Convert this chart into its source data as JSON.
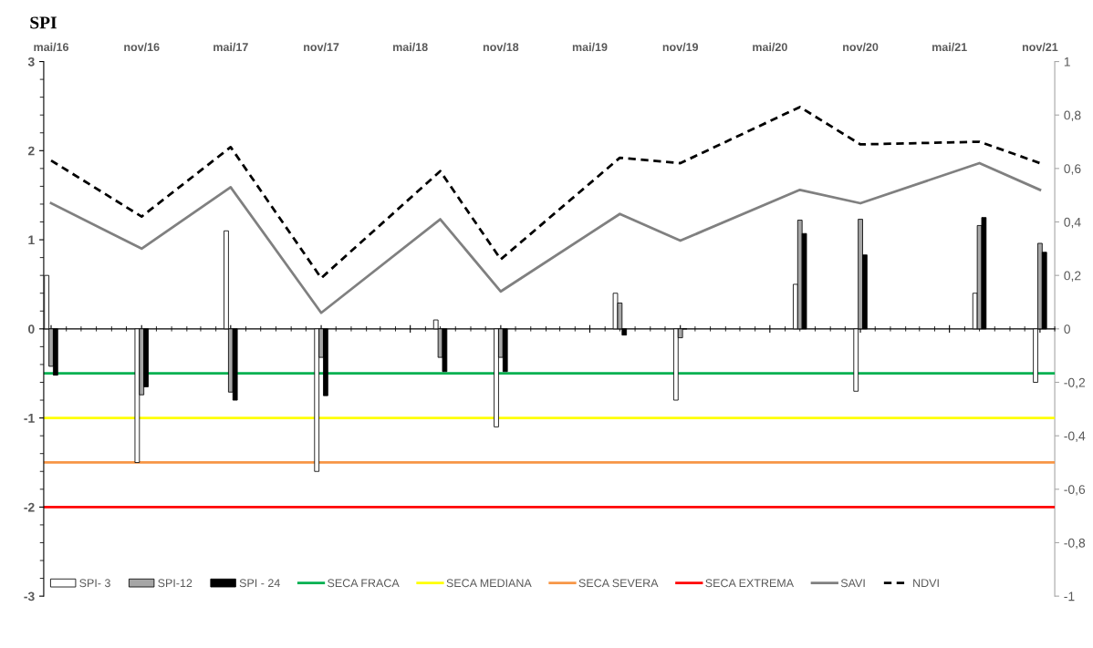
{
  "chart_data": {
    "type": "bar",
    "title": "SPI",
    "x": [
      "2016-05",
      "2016-11",
      "2017-05",
      "2017-11",
      "2018-07",
      "2018-11",
      "2019-07",
      "2019-11",
      "2020-07",
      "2020-11",
      "2021-07",
      "2021-11"
    ],
    "xlim": [
      "2016-04-16",
      "2021-12-01"
    ],
    "xticks": [
      {
        "value": "2016-05",
        "label": "mai/16"
      },
      {
        "value": "2016-11",
        "label": "nov/16"
      },
      {
        "value": "2017-05",
        "label": "mai/17"
      },
      {
        "value": "2017-11",
        "label": "nov/17"
      },
      {
        "value": "2018-05",
        "label": "mai/18"
      },
      {
        "value": "2018-11",
        "label": "nov/18"
      },
      {
        "value": "2019-05",
        "label": "mai/19"
      },
      {
        "value": "2019-11",
        "label": "nov/19"
      },
      {
        "value": "2020-05",
        "label": "mai/20"
      },
      {
        "value": "2020-11",
        "label": "nov/20"
      },
      {
        "value": "2021-05",
        "label": "mai/21"
      },
      {
        "value": "2021-11",
        "label": "nov/21"
      }
    ],
    "ylim": [
      -3,
      3
    ],
    "yticks": [
      -3,
      -2,
      -1,
      0,
      1,
      2,
      3
    ],
    "y2lim": [
      -1,
      1
    ],
    "y2ticks": [
      {
        "value": -1,
        "label": "-1"
      },
      {
        "value": -0.8,
        "label": "-0,8"
      },
      {
        "value": -0.6,
        "label": "-0,6"
      },
      {
        "value": -0.4,
        "label": "-0,4"
      },
      {
        "value": -0.2,
        "label": "-0,2"
      },
      {
        "value": 0,
        "label": "0"
      },
      {
        "value": 0.2,
        "label": "0,2"
      },
      {
        "value": 0.4,
        "label": "0,4"
      },
      {
        "value": 0.6,
        "label": "0,6"
      },
      {
        "value": 0.8,
        "label": "0,8"
      },
      {
        "value": 1,
        "label": "1"
      }
    ],
    "series": [
      {
        "name": "SPI- 3",
        "color": "#ffffff",
        "values": [
          0.6,
          -1.5,
          1.1,
          -1.6,
          0.1,
          -1.1,
          0.4,
          -0.8,
          0.5,
          -0.7,
          0.4,
          -0.6
        ]
      },
      {
        "name": "SPI-12",
        "color": "#a6a6a6",
        "values": [
          -0.42,
          -0.74,
          -0.71,
          -0.32,
          -0.32,
          -0.32,
          0.29,
          -0.1,
          1.22,
          1.23,
          1.16,
          0.96
        ]
      },
      {
        "name": "SPI - 24",
        "color": "#000000",
        "values": [
          -0.52,
          -0.65,
          -0.8,
          -0.75,
          -0.48,
          -0.48,
          -0.07,
          0,
          1.07,
          0.83,
          1.25,
          0.86
        ]
      },
      {
        "name": "SAVI",
        "type": "line",
        "axis": "y2",
        "color": "#808080",
        "line_style": "solid",
        "values": [
          0.47,
          0.3,
          0.53,
          0.06,
          0.41,
          0.14,
          0.43,
          0.33,
          0.52,
          0.47,
          0.62,
          0.52
        ]
      },
      {
        "name": "NDVI",
        "type": "line",
        "axis": "y2",
        "color": "#000000",
        "line_style": "dashed",
        "values": [
          0.63,
          0.42,
          0.68,
          0.19,
          0.59,
          0.26,
          0.64,
          0.62,
          0.83,
          0.69,
          0.7,
          0.62
        ]
      }
    ],
    "ref_lines": [
      {
        "axis": "y",
        "value": -0.5,
        "label": "SECA FRACA",
        "color": "#00b050"
      },
      {
        "axis": "y",
        "value": -1,
        "label": "SECA MEDIANA",
        "color": "#ffff00"
      },
      {
        "axis": "y",
        "value": -1.5,
        "label": "SECA SEVERA",
        "color": "#f79646"
      },
      {
        "axis": "y",
        "value": -2,
        "label": "SECA EXTREMA",
        "color": "#ff0000"
      }
    ],
    "legend": "bottom left",
    "grid": false
  }
}
